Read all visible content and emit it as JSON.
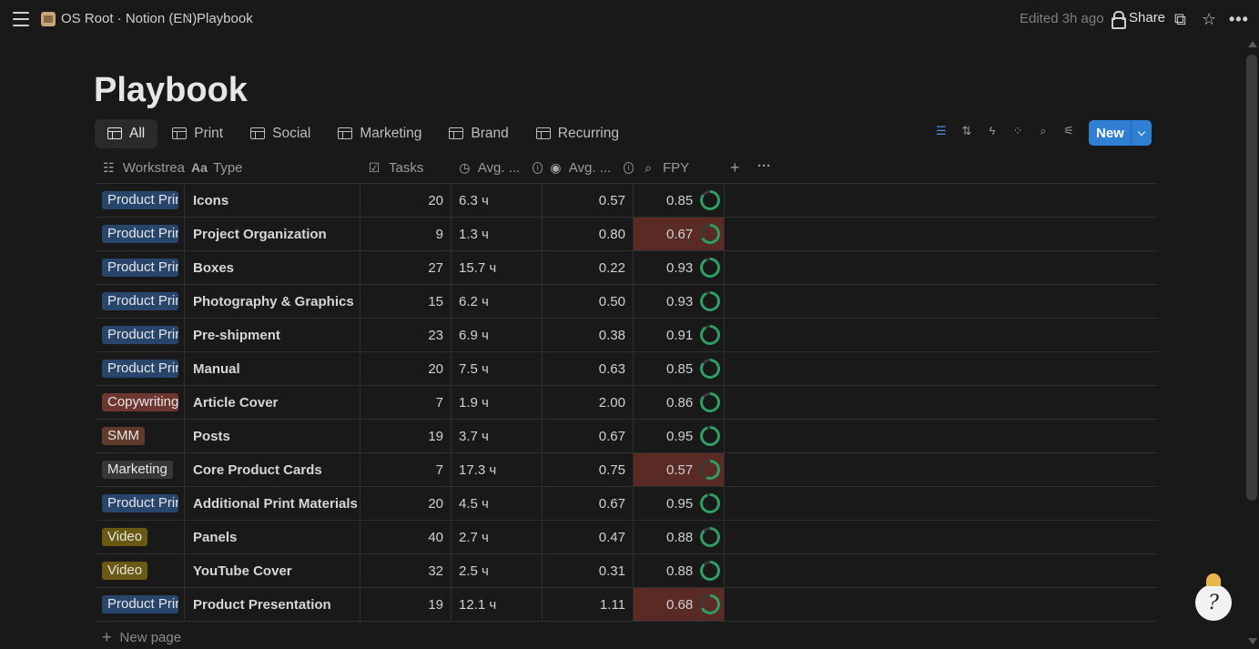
{
  "breadcrumb": {
    "workspace": "OS Root · Notion (EN)",
    "separator": "/",
    "page": "Playbook"
  },
  "topbar": {
    "edited": "Edited 3h ago",
    "share_label": "Share"
  },
  "page_title": "Playbook",
  "views": [
    {
      "label": "All",
      "active": true
    },
    {
      "label": "Print",
      "active": false
    },
    {
      "label": "Social",
      "active": false
    },
    {
      "label": "Marketing",
      "active": false
    },
    {
      "label": "Brand",
      "active": false
    },
    {
      "label": "Recurring",
      "active": false
    }
  ],
  "new_button": {
    "label": "New"
  },
  "columns": {
    "workstream": "Workstrea",
    "type": "Type",
    "tasks": "Tasks",
    "avg_hours": "Avg. ...",
    "avg_cost": "Avg. ...",
    "fpy": "FPY"
  },
  "tag_colors": {
    "product": "#28456c",
    "copywriting": "#6e3630",
    "smm": "#603b2c",
    "marketing": "#373737",
    "video": "#6a5912"
  },
  "rows": [
    {
      "workstream": "Product Print",
      "tag": "product",
      "type": "Icons",
      "tasks": "20",
      "hours": "6.3 ч",
      "avg": "0.57",
      "fpy": "0.85",
      "fpy_value": 0.85,
      "low": false
    },
    {
      "workstream": "Product Print",
      "tag": "product",
      "type": "Project Organization",
      "tasks": "9",
      "hours": "1.3 ч",
      "avg": "0.80",
      "fpy": "0.67",
      "fpy_value": 0.67,
      "low": true
    },
    {
      "workstream": "Product Print",
      "tag": "product",
      "type": "Boxes",
      "tasks": "27",
      "hours": "15.7 ч",
      "avg": "0.22",
      "fpy": "0.93",
      "fpy_value": 0.93,
      "low": false
    },
    {
      "workstream": "Product Print",
      "tag": "product",
      "type": "Photography & Graphics",
      "tasks": "15",
      "hours": "6.2 ч",
      "avg": "0.50",
      "fpy": "0.93",
      "fpy_value": 0.93,
      "low": false
    },
    {
      "workstream": "Product Print",
      "tag": "product",
      "type": "Pre-shipment",
      "tasks": "23",
      "hours": "6.9 ч",
      "avg": "0.38",
      "fpy": "0.91",
      "fpy_value": 0.91,
      "low": false
    },
    {
      "workstream": "Product Print",
      "tag": "product",
      "type": "Manual",
      "tasks": "20",
      "hours": "7.5 ч",
      "avg": "0.63",
      "fpy": "0.85",
      "fpy_value": 0.85,
      "low": false
    },
    {
      "workstream": "Copywriting",
      "tag": "copywriting",
      "type": "Article Cover",
      "tasks": "7",
      "hours": "1.9 ч",
      "avg": "2.00",
      "fpy": "0.86",
      "fpy_value": 0.86,
      "low": false
    },
    {
      "workstream": "SMM",
      "tag": "smm",
      "type": "Posts",
      "tasks": "19",
      "hours": "3.7 ч",
      "avg": "0.67",
      "fpy": "0.95",
      "fpy_value": 0.95,
      "low": false
    },
    {
      "workstream": "Marketing",
      "tag": "marketing",
      "type": "Core Product Cards",
      "tasks": "7",
      "hours": "17.3 ч",
      "avg": "0.75",
      "fpy": "0.57",
      "fpy_value": 0.57,
      "low": true
    },
    {
      "workstream": "Product Print",
      "tag": "product",
      "type": "Additional Print Materials",
      "tasks": "20",
      "hours": "4.5 ч",
      "avg": "0.67",
      "fpy": "0.95",
      "fpy_value": 0.95,
      "low": false
    },
    {
      "workstream": "Video",
      "tag": "video",
      "type": "Panels",
      "tasks": "40",
      "hours": "2.7 ч",
      "avg": "0.47",
      "fpy": "0.88",
      "fpy_value": 0.88,
      "low": false
    },
    {
      "workstream": "Video",
      "tag": "video",
      "type": "YouTube Cover",
      "tasks": "32",
      "hours": "2.5 ч",
      "avg": "0.31",
      "fpy": "0.88",
      "fpy_value": 0.88,
      "low": false
    },
    {
      "workstream": "Product Print",
      "tag": "product",
      "type": "Product Presentation",
      "tasks": "19",
      "hours": "12.1 ч",
      "avg": "1.11",
      "fpy": "0.68",
      "fpy_value": 0.68,
      "low": true
    }
  ],
  "new_page_label": "New page",
  "ring_colors": {
    "fill": "#2f9e62",
    "track": "#3a3a3a"
  }
}
